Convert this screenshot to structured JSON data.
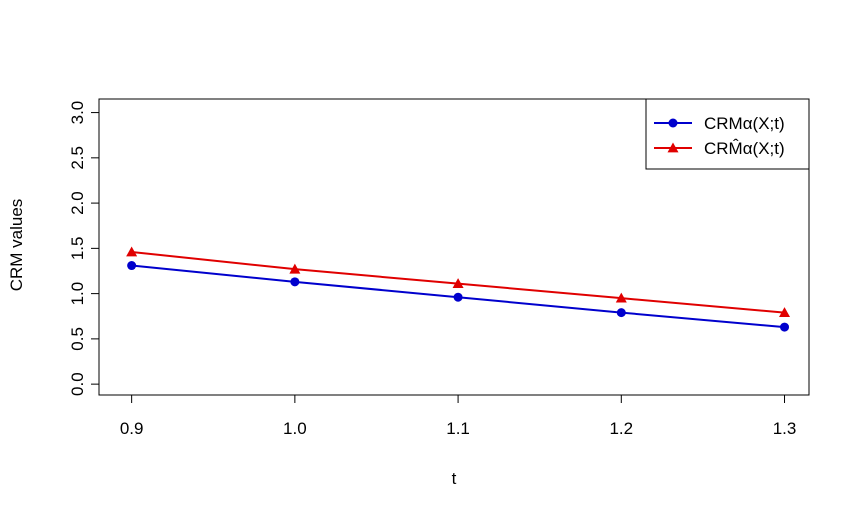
{
  "chart_data": {
    "type": "line",
    "title": "",
    "xlabel": "t",
    "ylabel": "CRM values",
    "x": [
      0.9,
      1.0,
      1.1,
      1.2,
      1.3
    ],
    "x_tick_labels": [
      "0.9",
      "1.0",
      "1.1",
      "1.2",
      "1.3"
    ],
    "y_tick_labels": [
      "0.0",
      "0.5",
      "1.0",
      "1.5",
      "2.0",
      "2.5",
      "3.0"
    ],
    "xlim": [
      0.88,
      1.315
    ],
    "ylim": [
      -0.12,
      3.15
    ],
    "grid": false,
    "legend_position": "top-right",
    "series": [
      {
        "name": "CRMα(X;t)",
        "marker": "circle",
        "color": "#0000CD",
        "values": [
          1.31,
          1.13,
          0.96,
          0.79,
          0.63
        ]
      },
      {
        "name": "CRM̂α(X;t)",
        "marker": "triangle",
        "color": "#E00000",
        "values": [
          1.46,
          1.27,
          1.11,
          0.95,
          0.79
        ]
      }
    ]
  }
}
